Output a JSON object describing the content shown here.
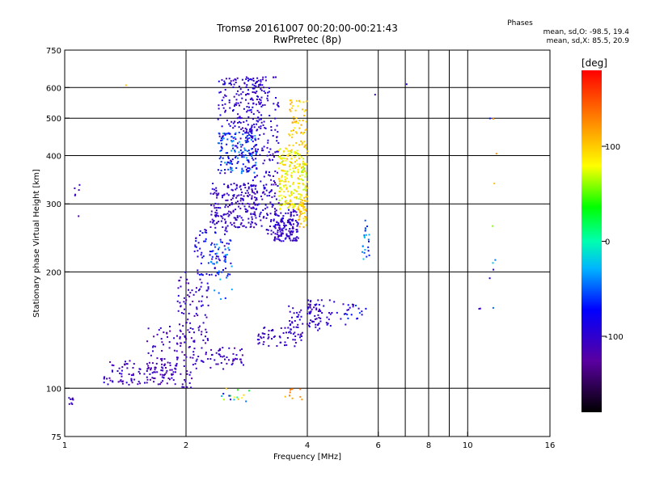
{
  "chart_data": {
    "type": "scatter",
    "title": "Tromsø 20161007 00:20:00-00:21:43",
    "subtitle": "RwPretec (8p)",
    "xlabel": "Frequency [MHz]",
    "ylabel": "Stationary phase Virtual Height [km]",
    "x_scale": "log",
    "y_scale": "log",
    "xlim": [
      1,
      16
    ],
    "ylim": [
      75,
      750
    ],
    "x_ticks": [
      1,
      2,
      4,
      6,
      8,
      10,
      16
    ],
    "x_tick_labels": [
      "1",
      "2",
      "4",
      "6",
      "8",
      "10",
      "16"
    ],
    "x_grid": [
      2,
      4,
      6,
      7,
      8,
      9,
      10
    ],
    "y_ticks": [
      75,
      100,
      200,
      300,
      400,
      500,
      600,
      750
    ],
    "y_tick_labels": [
      "75",
      "100",
      "200",
      "300",
      "400",
      "500",
      "600",
      "750"
    ],
    "y_grid": [
      100,
      200,
      300,
      400,
      500,
      600
    ],
    "grid": true,
    "stats": {
      "heading": "Phases",
      "line_o": "mean, sd,O: -98.5, 19.4",
      "line_x": "mean, sd,X: 85.5, 20.9"
    },
    "colorbar": {
      "label": "[deg]",
      "range": [
        -180,
        180
      ],
      "ticks": [
        100,
        0,
        -100
      ],
      "tick_labels": [
        "100",
        "0",
        "-100"
      ]
    },
    "clusters": [
      {
        "f": [
          1.02,
          1.05
        ],
        "h": [
          90,
          95
        ],
        "phase": [
          -110,
          -100
        ],
        "n": 8
      },
      {
        "f": [
          1.05,
          1.09
        ],
        "h": [
          250,
          470
        ],
        "phase": [
          -120,
          -100
        ],
        "n": 6
      },
      {
        "f": [
          1.25,
          1.9
        ],
        "h": [
          102,
          118
        ],
        "phase": [
          -125,
          -95
        ],
        "n": 110
      },
      {
        "f": [
          1.6,
          2.1
        ],
        "h": [
          100,
          145
        ],
        "phase": [
          -125,
          -95
        ],
        "n": 90
      },
      {
        "f": [
          1.9,
          2.3
        ],
        "h": [
          130,
          200
        ],
        "phase": [
          -120,
          -90
        ],
        "n": 90
      },
      {
        "f": [
          2.05,
          2.8
        ],
        "h": [
          112,
          128
        ],
        "phase": [
          -120,
          -95
        ],
        "n": 60
      },
      {
        "f": [
          2.1,
          2.6
        ],
        "h": [
          195,
          260
        ],
        "phase": [
          -110,
          -60
        ],
        "n": 80
      },
      {
        "f": [
          2.3,
          2.6
        ],
        "h": [
          170,
          240
        ],
        "phase": [
          -70,
          -20
        ],
        "n": 30
      },
      {
        "f": [
          2.3,
          3.0
        ],
        "h": [
          260,
          340
        ],
        "phase": [
          -115,
          -90
        ],
        "n": 200
      },
      {
        "f": [
          2.4,
          3.0
        ],
        "h": [
          360,
          460
        ],
        "phase": [
          -110,
          -30
        ],
        "n": 180
      },
      {
        "f": [
          2.4,
          3.1
        ],
        "h": [
          460,
          640
        ],
        "phase": [
          -115,
          -80
        ],
        "n": 160
      },
      {
        "f": [
          2.9,
          3.4
        ],
        "h": [
          250,
          640
        ],
        "phase": [
          -115,
          -85
        ],
        "n": 220
      },
      {
        "f": [
          3.3,
          3.8
        ],
        "h": [
          240,
          290
        ],
        "phase": [
          -115,
          -90
        ],
        "n": 140
      },
      {
        "f": [
          3.4,
          4.0
        ],
        "h": [
          290,
          420
        ],
        "phase": [
          60,
          110
        ],
        "n": 220
      },
      {
        "f": [
          3.6,
          4.0
        ],
        "h": [
          420,
          560
        ],
        "phase": [
          80,
          120
        ],
        "n": 60
      },
      {
        "f": [
          3.8,
          4.0
        ],
        "h": [
          260,
          320
        ],
        "phase": [
          80,
          120
        ],
        "n": 40
      },
      {
        "f": [
          3.0,
          3.9
        ],
        "h": [
          128,
          145
        ],
        "phase": [
          -115,
          -95
        ],
        "n": 60
      },
      {
        "f": [
          3.6,
          4.3
        ],
        "h": [
          140,
          165
        ],
        "phase": [
          -115,
          -90
        ],
        "n": 50
      },
      {
        "f": [
          4.0,
          5.0
        ],
        "h": [
          145,
          170
        ],
        "phase": [
          -115,
          -85
        ],
        "n": 45
      },
      {
        "f": [
          5.0,
          5.6
        ],
        "h": [
          150,
          165
        ],
        "phase": [
          -110,
          -50
        ],
        "n": 18
      },
      {
        "f": [
          5.4,
          5.7
        ],
        "h": [
          215,
          275
        ],
        "phase": [
          -80,
          -10
        ],
        "n": 22
      },
      {
        "f": [
          2.45,
          2.9
        ],
        "h": [
          92,
          100
        ],
        "phase": [
          -100,
          120
        ],
        "n": 16
      },
      {
        "f": [
          3.5,
          3.9
        ],
        "h": [
          92,
          100
        ],
        "phase": [
          100,
          140
        ],
        "n": 10
      },
      {
        "f": [
          11.3,
          11.8
        ],
        "h": [
          150,
          550
        ],
        "phase": [
          -110,
          130
        ],
        "n": 10
      },
      {
        "f": [
          10.6,
          10.8
        ],
        "h": [
          158,
          162
        ],
        "phase": [
          -110,
          -100
        ],
        "n": 2
      },
      {
        "f": [
          7.0,
          7.1
        ],
        "h": [
          608,
          612
        ],
        "phase": [
          -110,
          -100
        ],
        "n": 1
      },
      {
        "f": [
          5.8,
          5.9
        ],
        "h": [
          572,
          580
        ],
        "phase": [
          -110,
          -100
        ],
        "n": 1
      },
      {
        "f": [
          1.4,
          1.45
        ],
        "h": [
          608,
          614
        ],
        "phase": [
          100,
          120
        ],
        "n": 1
      }
    ]
  }
}
